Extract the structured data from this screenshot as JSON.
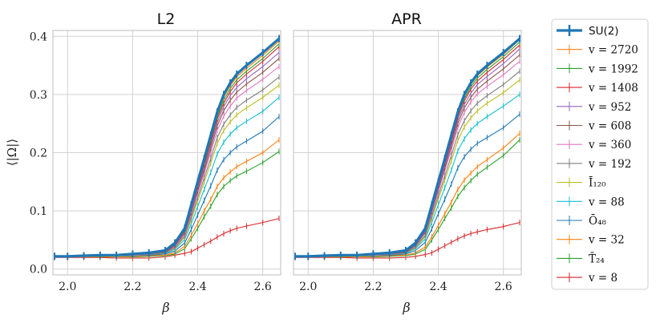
{
  "chart_data": [
    {
      "type": "line",
      "title": "L2",
      "xlabel": "β",
      "ylabel": "⟨|Ω|⟩",
      "xlim": [
        1.955,
        2.655
      ],
      "ylim": [
        -0.01,
        0.41
      ],
      "xticks": [
        "2.0",
        "2.2",
        "2.4",
        "2.6"
      ],
      "yticks": [
        "0.0",
        "0.1",
        "0.2",
        "0.3",
        "0.4"
      ],
      "grid": true,
      "x": [
        1.96,
        2.0,
        2.05,
        2.1,
        2.15,
        2.2,
        2.25,
        2.3,
        2.33,
        2.36,
        2.38,
        2.4,
        2.42,
        2.44,
        2.46,
        2.48,
        2.5,
        2.52,
        2.55,
        2.6,
        2.65
      ],
      "series": [
        {
          "name": "SU(2)",
          "color": "#1f77b4",
          "width": 3.2,
          "values": [
            0.022,
            0.022,
            0.023,
            0.024,
            0.024,
            0.026,
            0.028,
            0.032,
            0.045,
            0.07,
            0.11,
            0.15,
            0.19,
            0.23,
            0.27,
            0.3,
            0.32,
            0.335,
            0.35,
            0.372,
            0.396
          ]
        },
        {
          "name": "v = 2720",
          "color": "#ff7f0e",
          "values": [
            0.022,
            0.022,
            0.022,
            0.024,
            0.024,
            0.026,
            0.027,
            0.031,
            0.044,
            0.068,
            0.108,
            0.148,
            0.186,
            0.226,
            0.266,
            0.295,
            0.315,
            0.33,
            0.345,
            0.367,
            0.392
          ]
        },
        {
          "name": "v = 1992",
          "color": "#2ca02c",
          "values": [
            0.022,
            0.022,
            0.022,
            0.024,
            0.023,
            0.025,
            0.027,
            0.031,
            0.043,
            0.067,
            0.106,
            0.145,
            0.183,
            0.222,
            0.262,
            0.29,
            0.31,
            0.325,
            0.34,
            0.362,
            0.387
          ]
        },
        {
          "name": "v = 1408",
          "color": "#d62728",
          "values": [
            0.022,
            0.022,
            0.022,
            0.024,
            0.023,
            0.025,
            0.027,
            0.03,
            0.042,
            0.066,
            0.104,
            0.142,
            0.18,
            0.218,
            0.258,
            0.285,
            0.305,
            0.32,
            0.335,
            0.357,
            0.382
          ]
        },
        {
          "name": "v = 952",
          "color": "#9467bd",
          "values": [
            0.022,
            0.022,
            0.022,
            0.023,
            0.023,
            0.025,
            0.026,
            0.03,
            0.041,
            0.064,
            0.1,
            0.138,
            0.175,
            0.213,
            0.252,
            0.279,
            0.298,
            0.312,
            0.327,
            0.348,
            0.372
          ]
        },
        {
          "name": "v = 608",
          "color": "#8c564b",
          "values": [
            0.022,
            0.022,
            0.022,
            0.023,
            0.023,
            0.025,
            0.026,
            0.029,
            0.04,
            0.062,
            0.097,
            0.134,
            0.17,
            0.207,
            0.246,
            0.272,
            0.29,
            0.304,
            0.318,
            0.338,
            0.362
          ]
        },
        {
          "name": "v = 360",
          "color": "#e377c2",
          "values": [
            0.022,
            0.022,
            0.022,
            0.023,
            0.023,
            0.024,
            0.026,
            0.029,
            0.039,
            0.06,
            0.094,
            0.13,
            0.165,
            0.2,
            0.238,
            0.263,
            0.28,
            0.294,
            0.307,
            0.326,
            0.348
          ]
        },
        {
          "name": "v = 192",
          "color": "#7f7f7f",
          "values": [
            0.022,
            0.022,
            0.022,
            0.023,
            0.023,
            0.024,
            0.025,
            0.028,
            0.037,
            0.057,
            0.089,
            0.123,
            0.157,
            0.19,
            0.226,
            0.249,
            0.265,
            0.278,
            0.29,
            0.308,
            0.33
          ]
        },
        {
          "name": "Ī₁₂₀",
          "color": "#bcbd22",
          "values": [
            0.022,
            0.022,
            0.022,
            0.023,
            0.022,
            0.024,
            0.025,
            0.028,
            0.036,
            0.055,
            0.085,
            0.117,
            0.15,
            0.182,
            0.216,
            0.238,
            0.253,
            0.265,
            0.277,
            0.295,
            0.316
          ]
        },
        {
          "name": "v = 88",
          "color": "#17becf",
          "values": [
            0.022,
            0.022,
            0.022,
            0.023,
            0.022,
            0.024,
            0.025,
            0.027,
            0.034,
            0.051,
            0.078,
            0.107,
            0.137,
            0.166,
            0.198,
            0.218,
            0.232,
            0.243,
            0.254,
            0.271,
            0.295
          ]
        },
        {
          "name": "Ō₄₈",
          "color": "#1f77b4",
          "values": [
            0.022,
            0.022,
            0.022,
            0.023,
            0.022,
            0.023,
            0.024,
            0.026,
            0.031,
            0.045,
            0.068,
            0.093,
            0.118,
            0.143,
            0.17,
            0.188,
            0.2,
            0.21,
            0.22,
            0.237,
            0.262
          ]
        },
        {
          "name": "v = 32",
          "color": "#ff7f0e",
          "values": [
            0.021,
            0.021,
            0.021,
            0.022,
            0.021,
            0.022,
            0.023,
            0.024,
            0.028,
            0.039,
            0.058,
            0.078,
            0.1,
            0.12,
            0.142,
            0.157,
            0.167,
            0.176,
            0.185,
            0.2,
            0.222
          ]
        },
        {
          "name": "T̄₂₄",
          "color": "#2ca02c",
          "values": [
            0.021,
            0.021,
            0.021,
            0.021,
            0.021,
            0.021,
            0.022,
            0.023,
            0.026,
            0.035,
            0.052,
            0.07,
            0.09,
            0.108,
            0.128,
            0.142,
            0.152,
            0.16,
            0.168,
            0.183,
            0.202
          ]
        },
        {
          "name": "v = 8",
          "color": "#d62728",
          "values": [
            0.02,
            0.02,
            0.02,
            0.02,
            0.019,
            0.019,
            0.019,
            0.021,
            0.024,
            0.027,
            0.03,
            0.036,
            0.042,
            0.048,
            0.055,
            0.061,
            0.066,
            0.07,
            0.074,
            0.08,
            0.087
          ]
        }
      ]
    },
    {
      "type": "line",
      "title": "APR",
      "xlabel": "β",
      "ylabel": "",
      "xlim": [
        1.955,
        2.655
      ],
      "ylim": [
        -0.01,
        0.41
      ],
      "xticks": [
        "2.0",
        "2.2",
        "2.4",
        "2.6"
      ],
      "yticks": [],
      "grid": true,
      "x": [
        1.96,
        2.0,
        2.05,
        2.1,
        2.15,
        2.2,
        2.25,
        2.3,
        2.33,
        2.36,
        2.38,
        2.4,
        2.42,
        2.44,
        2.46,
        2.48,
        2.5,
        2.52,
        2.55,
        2.6,
        2.65
      ],
      "series": [
        {
          "name": "SU(2)",
          "color": "#1f77b4",
          "width": 3.2,
          "values": [
            0.022,
            0.022,
            0.023,
            0.024,
            0.024,
            0.026,
            0.028,
            0.032,
            0.045,
            0.07,
            0.11,
            0.15,
            0.19,
            0.23,
            0.27,
            0.3,
            0.32,
            0.335,
            0.35,
            0.372,
            0.396
          ]
        },
        {
          "name": "v = 2720",
          "color": "#ff7f0e",
          "values": [
            0.022,
            0.022,
            0.022,
            0.024,
            0.024,
            0.026,
            0.027,
            0.031,
            0.044,
            0.069,
            0.109,
            0.149,
            0.188,
            0.228,
            0.268,
            0.297,
            0.317,
            0.332,
            0.347,
            0.369,
            0.394
          ]
        },
        {
          "name": "v = 1992",
          "color": "#2ca02c",
          "values": [
            0.022,
            0.022,
            0.022,
            0.024,
            0.023,
            0.025,
            0.027,
            0.031,
            0.043,
            0.068,
            0.107,
            0.147,
            0.185,
            0.225,
            0.265,
            0.293,
            0.313,
            0.328,
            0.343,
            0.365,
            0.39
          ]
        },
        {
          "name": "v = 1408",
          "color": "#d62728",
          "values": [
            0.022,
            0.022,
            0.022,
            0.024,
            0.023,
            0.025,
            0.027,
            0.03,
            0.043,
            0.067,
            0.105,
            0.144,
            0.182,
            0.221,
            0.261,
            0.289,
            0.309,
            0.323,
            0.338,
            0.36,
            0.385
          ]
        },
        {
          "name": "v = 952",
          "color": "#9467bd",
          "values": [
            0.022,
            0.022,
            0.022,
            0.023,
            0.023,
            0.025,
            0.026,
            0.03,
            0.042,
            0.065,
            0.102,
            0.14,
            0.178,
            0.216,
            0.256,
            0.283,
            0.302,
            0.317,
            0.331,
            0.353,
            0.378
          ]
        },
        {
          "name": "v = 608",
          "color": "#8c564b",
          "values": [
            0.022,
            0.022,
            0.022,
            0.023,
            0.023,
            0.025,
            0.026,
            0.029,
            0.041,
            0.063,
            0.099,
            0.137,
            0.174,
            0.211,
            0.25,
            0.277,
            0.295,
            0.309,
            0.323,
            0.344,
            0.368
          ]
        },
        {
          "name": "v = 360",
          "color": "#e377c2",
          "values": [
            0.022,
            0.022,
            0.022,
            0.023,
            0.023,
            0.024,
            0.026,
            0.029,
            0.04,
            0.062,
            0.096,
            0.133,
            0.169,
            0.205,
            0.243,
            0.269,
            0.287,
            0.301,
            0.314,
            0.334,
            0.357
          ]
        },
        {
          "name": "v = 192",
          "color": "#7f7f7f",
          "values": [
            0.022,
            0.022,
            0.022,
            0.023,
            0.023,
            0.024,
            0.025,
            0.028,
            0.038,
            0.058,
            0.091,
            0.126,
            0.16,
            0.195,
            0.231,
            0.255,
            0.272,
            0.285,
            0.298,
            0.317,
            0.34
          ]
        },
        {
          "name": "Ī₁₂₀",
          "color": "#bcbd22",
          "values": [
            0.022,
            0.022,
            0.022,
            0.023,
            0.022,
            0.024,
            0.025,
            0.028,
            0.037,
            0.056,
            0.087,
            0.12,
            0.153,
            0.186,
            0.221,
            0.244,
            0.26,
            0.272,
            0.285,
            0.303,
            0.325
          ]
        },
        {
          "name": "v = 88",
          "color": "#17becf",
          "values": [
            0.022,
            0.022,
            0.022,
            0.023,
            0.022,
            0.024,
            0.025,
            0.027,
            0.035,
            0.052,
            0.08,
            0.11,
            0.14,
            0.17,
            0.203,
            0.224,
            0.239,
            0.25,
            0.262,
            0.28,
            0.3
          ]
        },
        {
          "name": "Ō₄₈",
          "color": "#1f77b4",
          "values": [
            0.022,
            0.022,
            0.022,
            0.023,
            0.022,
            0.023,
            0.024,
            0.026,
            0.032,
            0.046,
            0.069,
            0.095,
            0.12,
            0.146,
            0.174,
            0.193,
            0.206,
            0.216,
            0.226,
            0.243,
            0.266
          ]
        },
        {
          "name": "v = 32",
          "color": "#ff7f0e",
          "values": [
            0.021,
            0.021,
            0.021,
            0.022,
            0.021,
            0.022,
            0.023,
            0.024,
            0.028,
            0.038,
            0.055,
            0.075,
            0.095,
            0.115,
            0.137,
            0.153,
            0.165,
            0.176,
            0.188,
            0.208,
            0.233
          ]
        },
        {
          "name": "T̄₂₄",
          "color": "#2ca02c",
          "values": [
            0.021,
            0.021,
            0.021,
            0.021,
            0.021,
            0.021,
            0.022,
            0.023,
            0.026,
            0.034,
            0.05,
            0.068,
            0.087,
            0.105,
            0.125,
            0.14,
            0.152,
            0.163,
            0.175,
            0.195,
            0.222
          ]
        },
        {
          "name": "v = 8",
          "color": "#d62728",
          "values": [
            0.02,
            0.02,
            0.02,
            0.02,
            0.019,
            0.019,
            0.019,
            0.02,
            0.022,
            0.025,
            0.028,
            0.034,
            0.04,
            0.046,
            0.052,
            0.057,
            0.061,
            0.064,
            0.068,
            0.073,
            0.08
          ]
        }
      ]
    }
  ],
  "legend": {
    "placement": "right",
    "items": [
      {
        "label": "SU(2)",
        "color": "#1f77b4",
        "thick": true
      },
      {
        "label": "v = 2720",
        "color": "#ff7f0e"
      },
      {
        "label": "v = 1992",
        "color": "#2ca02c"
      },
      {
        "label": "v = 1408",
        "color": "#d62728"
      },
      {
        "label": "v = 952",
        "color": "#9467bd"
      },
      {
        "label": "v = 608",
        "color": "#8c564b"
      },
      {
        "label": "v = 360",
        "color": "#e377c2"
      },
      {
        "label": "v = 192",
        "color": "#7f7f7f"
      },
      {
        "label": "Ī₁₂₀",
        "color": "#bcbd22"
      },
      {
        "label": "v = 88",
        "color": "#17becf"
      },
      {
        "label": "Ō₄₈",
        "color": "#1f77b4"
      },
      {
        "label": "v = 32",
        "color": "#ff7f0e"
      },
      {
        "label": "T̄₂₄",
        "color": "#2ca02c"
      },
      {
        "label": "v = 8",
        "color": "#d62728"
      }
    ]
  }
}
